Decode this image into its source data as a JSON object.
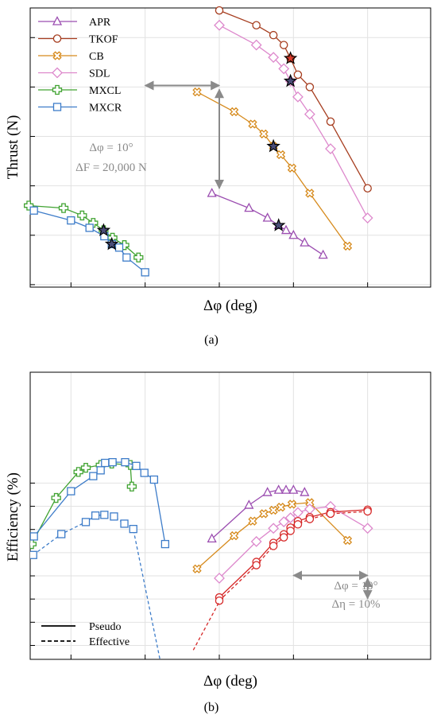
{
  "figure": {
    "panel_a_caption": "(a)",
    "panel_b_caption": "(b)"
  },
  "colors": {
    "APR": "#9b4db0",
    "TKOF": "#a63d1f",
    "CB": "#d68a1c",
    "SDL": "#dd88cc",
    "MXCL": "#41a332",
    "MXCR": "#3d7cc9",
    "effective": "#d62828",
    "star_a": "#4a4d78",
    "star_b": "#d83a2a",
    "annotation": "#8a8a8a"
  },
  "chart_data": [
    {
      "type": "line",
      "panel": "a",
      "ylabel": "Thrust (N)",
      "xlabel": "Δφ (deg)",
      "xlim": [
        -5.5,
        48.5
      ],
      "ylim": [
        -500,
        56000
      ],
      "grid": true,
      "legend_position": "top-left",
      "scale_annotation": {
        "line1": "Δφ = 10°",
        "line2": "ΔF = 20,000 N",
        "dx_deg": 10,
        "dy_value": 20000,
        "anchor_x": 20,
        "anchor_y": 39500
      },
      "series": [
        {
          "name": "APR",
          "marker": "triangle",
          "x": [
            19,
            24,
            26.5,
            28,
            29,
            30,
            31.5,
            34
          ],
          "y": [
            18500,
            15500,
            13500,
            12000,
            11000,
            10000,
            8500,
            6000
          ],
          "star_index": 3
        },
        {
          "name": "TKOF",
          "marker": "circle",
          "x": [
            20,
            25,
            27.3,
            28.7,
            29.6,
            30.6,
            32.2,
            35,
            40
          ],
          "y": [
            55500,
            52500,
            50500,
            48500,
            45800,
            42500,
            40000,
            33000,
            19500
          ],
          "star_index": 4
        },
        {
          "name": "CB",
          "marker": "xcircle",
          "x": [
            17,
            22,
            24.5,
            26,
            27.3,
            28.3,
            29.8,
            32.2,
            37.3
          ],
          "y": [
            39000,
            35000,
            32500,
            30500,
            28000,
            26300,
            23600,
            18500,
            7800
          ],
          "star_index": 4
        },
        {
          "name": "SDL",
          "marker": "diamond",
          "x": [
            20,
            25,
            27.3,
            28.7,
            29.6,
            30.6,
            32.2,
            35,
            40
          ],
          "y": [
            52500,
            48500,
            46000,
            43700,
            41200,
            38000,
            34500,
            27500,
            13500
          ],
          "star_index": 4
        },
        {
          "name": "MXCL",
          "marker": "plus",
          "x": [
            -5.7,
            -1,
            1.5,
            3,
            4.4,
            5.6,
            7.2,
            9.1
          ],
          "y": [
            16000,
            15500,
            14000,
            12500,
            11000,
            9500,
            8000,
            5500
          ],
          "star_index": 4
        },
        {
          "name": "MXCR",
          "marker": "square",
          "x": [
            -5,
            0,
            2.5,
            4.5,
            5.5,
            6.5,
            7.5,
            10
          ],
          "y": [
            15000,
            13000,
            11500,
            9800,
            8200,
            7500,
            5500,
            2500
          ],
          "star_index": 4
        }
      ]
    },
    {
      "type": "line",
      "panel": "b",
      "ylabel": "Efficiency (%)",
      "xlabel": "Δφ (deg)",
      "xlim": [
        -5.5,
        48.5
      ],
      "ylim": [
        -26,
        97.8
      ],
      "grid": true,
      "legend_position": "bottom-left",
      "line_style_legend": [
        "Pseudo",
        "Effective"
      ],
      "scale_annotation": {
        "line1": "Δφ = 10°",
        "line2": "Δη = 10%",
        "dx_deg": 10,
        "dy_value": 10,
        "anchor_x": 40,
        "anchor_y": 10.2
      },
      "series": [
        {
          "name": "APR",
          "style": "pseudo",
          "marker": "triangle",
          "x": [
            19,
            24,
            26.5,
            28,
            29,
            30,
            31.5
          ],
          "y": [
            26,
            40.5,
            46,
            47,
            47,
            47,
            46
          ]
        },
        {
          "name": "CB",
          "style": "pseudo",
          "marker": "xcircle",
          "x": [
            17,
            22,
            24.5,
            26,
            27.3,
            28.3,
            29.8,
            32.2,
            37.3
          ],
          "y": [
            13,
            27.3,
            33.6,
            36.8,
            38.3,
            39.6,
            40.9,
            41.6,
            25.3
          ]
        },
        {
          "name": "SDL",
          "style": "pseudo",
          "marker": "diamond",
          "x": [
            20,
            25,
            27.3,
            28.7,
            29.6,
            30.6,
            32.2,
            35,
            40
          ],
          "y": [
            9,
            24.8,
            30.5,
            33.3,
            35,
            37.3,
            38.8,
            39.9,
            30.5
          ]
        },
        {
          "name": "TKOF",
          "style": "pseudo",
          "marker": "circle",
          "x": [
            20,
            25,
            27.3,
            28.7,
            29.6,
            30.6,
            32.2,
            35,
            40
          ],
          "y": [
            0.7,
            16,
            24.2,
            27.9,
            30.8,
            33.6,
            35.3,
            37.5,
            38.5
          ]
        },
        {
          "name": "TKOF",
          "style": "effective",
          "marker": "circle",
          "x": [
            20,
            25,
            27.3,
            28.7,
            29.6,
            30.6,
            32.2,
            35,
            40
          ],
          "y": [
            -0.7,
            14.6,
            22.9,
            26.6,
            29.4,
            32.2,
            34.5,
            36.8,
            37.8
          ]
        },
        {
          "name": "MXCL",
          "style": "pseudo",
          "marker": "plus",
          "x": [
            -5.3,
            -2,
            1,
            2,
            4,
            5.5,
            8,
            8.2
          ],
          "y": [
            23.7,
            43.6,
            54.8,
            56.6,
            57.8,
            58.4,
            57.8,
            48.5
          ]
        },
        {
          "name": "MXCR",
          "style": "pseudo",
          "marker": "square",
          "x": [
            -5,
            0,
            3,
            4,
            4.6,
            5.6,
            7.3,
            8.8,
            9.9,
            11.2,
            12.7
          ],
          "y": [
            27,
            46.5,
            53,
            55.5,
            58.7,
            59,
            59,
            57.4,
            54.4,
            51.5,
            23.7
          ]
        },
        {
          "name": "MXCR",
          "style": "effective",
          "marker": "square",
          "x": [
            -5.1,
            -1.3,
            2,
            3.3,
            4.5,
            5.8,
            7.2,
            8.4,
            12
          ],
          "y": [
            19,
            28,
            33.2,
            36,
            36.3,
            35.6,
            32.5,
            30.2,
            -26
          ]
        },
        {
          "name": "",
          "style": "effective",
          "marker": "none",
          "x": [
            16.5,
            20
          ],
          "y": [
            -22,
            -1.2
          ]
        }
      ]
    }
  ]
}
